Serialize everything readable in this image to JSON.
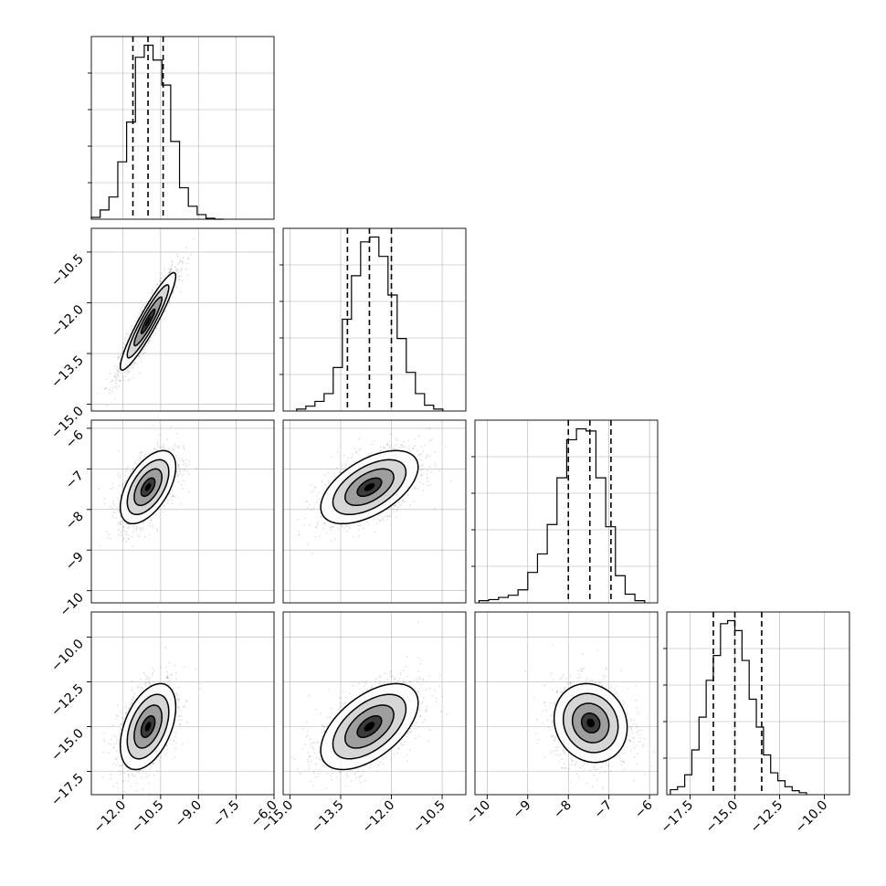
{
  "chart_data": {
    "type": "corner",
    "grid": true,
    "parameters": [
      {
        "range": [
          -13.25,
          -6.0
        ],
        "ticks": [
          -12.0,
          -10.5,
          -9.0,
          -7.5,
          -6.0
        ],
        "tick_labels": [
          "−12.0",
          "−10.5",
          "−9.0",
          "−7.5",
          "−6.0"
        ]
      },
      {
        "range": [
          -15.2,
          -9.8
        ],
        "ticks": [
          -15.0,
          -13.5,
          -12.0,
          -10.5
        ],
        "tick_labels": [
          "−15.0",
          "−13.5",
          "−12.0",
          "−10.5"
        ]
      },
      {
        "range": [
          -10.3,
          -5.8
        ],
        "ticks": [
          -10,
          -9,
          -8,
          -7,
          -6
        ],
        "tick_labels": [
          "−10",
          "−9",
          "−8",
          "−7",
          "−6"
        ]
      },
      {
        "range": [
          -18.8,
          -8.6
        ],
        "ticks": [
          -17.5,
          -15.0,
          -12.5,
          -10.0
        ],
        "tick_labels": [
          "−17.5",
          "−15.0",
          "−12.5",
          "−10.0"
        ]
      }
    ],
    "histograms": [
      {
        "param": 0,
        "bin_edges": [
          -13.25,
          -12.9,
          -12.55,
          -12.2,
          -11.85,
          -11.5,
          -11.15,
          -10.8,
          -10.45,
          -10.1,
          -9.75,
          -9.4,
          -9.05,
          -8.7,
          -8.35,
          -8.0
        ],
        "counts": [
          2,
          10,
          24,
          62,
          105,
          175,
          188,
          172,
          145,
          84,
          34,
          14,
          5,
          1,
          0
        ],
        "quantiles": [
          -11.6,
          -11.0,
          -10.4
        ]
      },
      {
        "param": 1,
        "bin_edges": [
          -14.8,
          -14.53,
          -14.26,
          -13.99,
          -13.72,
          -13.45,
          -13.18,
          -12.91,
          -12.64,
          -12.37,
          -12.1,
          -11.83,
          -11.56,
          -11.29,
          -11.02,
          -10.75,
          -10.48
        ],
        "counts": [
          2,
          5,
          10,
          18,
          45,
          95,
          140,
          175,
          180,
          160,
          120,
          75,
          40,
          18,
          6,
          2
        ],
        "quantiles": [
          -13.3,
          -12.65,
          -12.0
        ]
      },
      {
        "param": 2,
        "bin_edges": [
          -10.2,
          -9.96,
          -9.72,
          -9.48,
          -9.24,
          -9.0,
          -8.76,
          -8.52,
          -8.28,
          -8.04,
          -7.8,
          -7.56,
          -7.32,
          -7.08,
          -6.84,
          -6.6,
          -6.36,
          -6.12
        ],
        "counts": [
          2,
          3,
          5,
          7,
          12,
          28,
          45,
          72,
          115,
          150,
          160,
          158,
          115,
          70,
          25,
          8,
          2
        ],
        "quantiles": [
          -8.0,
          -7.47,
          -6.95
        ]
      },
      {
        "param": 3,
        "bin_edges": [
          -18.6,
          -18.2,
          -17.8,
          -17.4,
          -17.0,
          -16.6,
          -16.2,
          -15.8,
          -15.4,
          -15.0,
          -14.6,
          -14.2,
          -13.8,
          -13.4,
          -13.0,
          -12.6,
          -12.2,
          -11.8,
          -11.4,
          -11.0
        ],
        "counts": [
          5,
          8,
          20,
          45,
          78,
          115,
          140,
          172,
          175,
          165,
          135,
          96,
          68,
          40,
          22,
          14,
          8,
          4,
          2
        ],
        "quantiles": [
          -16.2,
          -15.0,
          -13.5
        ]
      }
    ],
    "pairs": [
      {
        "x_param": 0,
        "y_param": 1,
        "center": [
          -11.0,
          -12.55
        ],
        "sigma": [
          0.55,
          0.72
        ],
        "rho": 0.93
      },
      {
        "x_param": 0,
        "y_param": 2,
        "center": [
          -11.0,
          -7.45
        ],
        "sigma": [
          0.55,
          0.45
        ],
        "rho": 0.55
      },
      {
        "x_param": 1,
        "y_param": 2,
        "center": [
          -12.65,
          -7.45
        ],
        "sigma": [
          0.72,
          0.45
        ],
        "rho": 0.55
      },
      {
        "x_param": 0,
        "y_param": 3,
        "center": [
          -11.0,
          -15.0
        ],
        "sigma": [
          0.55,
          1.2
        ],
        "rho": 0.45
      },
      {
        "x_param": 1,
        "y_param": 3,
        "center": [
          -12.65,
          -15.0
        ],
        "sigma": [
          0.72,
          1.2
        ],
        "rho": 0.55
      },
      {
        "x_param": 2,
        "y_param": 3,
        "center": [
          -7.45,
          -14.8
        ],
        "sigma": [
          0.45,
          1.1
        ],
        "rho": -0.12
      }
    ],
    "contour_levels_sigma": [
      0.5,
      1.0,
      1.5,
      2.0
    ]
  }
}
